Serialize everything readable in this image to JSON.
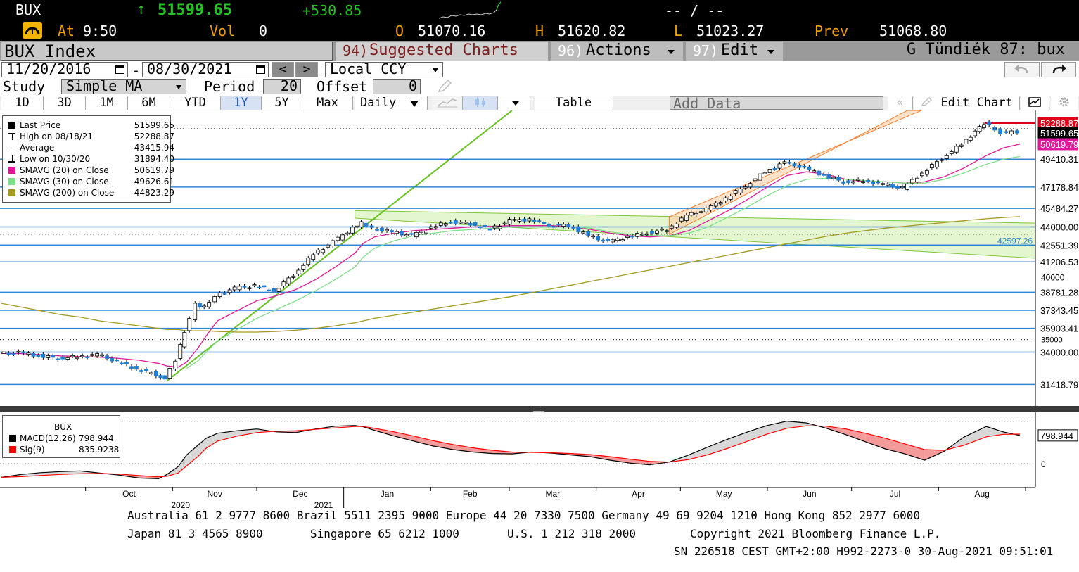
{
  "ticker": {
    "symbol": "BUX",
    "arrow": "↑",
    "last": "51599.65",
    "change": "+530.85",
    "bidask": "-- / --",
    "at_label": "At",
    "time": "9:50",
    "vol_label": "Vol",
    "vol": "0",
    "open_label": "O",
    "open": "51070.16",
    "high_label": "H",
    "high": "51620.82",
    "low_label": "L",
    "low": "51023.27",
    "prev_label": "Prev",
    "prev": "51068.80"
  },
  "menubar": {
    "security": "BUX Index",
    "suggested_num": "94)",
    "suggested": "Suggested Charts",
    "actions_num": "96)",
    "actions": "Actions",
    "edit_num": "97)",
    "edit": "Edit",
    "chart_name": "G Tündiék 87: bux"
  },
  "daterow": {
    "start": "11/20/2016",
    "end": "08/30/2021",
    "prev_btn": "<",
    "next_btn": ">",
    "currency": "Local CCY"
  },
  "studyrow": {
    "study_label": "Study",
    "study": "Simple MA",
    "period_label": "Period",
    "period": "20",
    "offset_label": "Offset",
    "offset": "0"
  },
  "toolbar": {
    "tabs": [
      "1D",
      "3D",
      "1M",
      "6M",
      "YTD",
      "1Y",
      "5Y",
      "Max"
    ],
    "active_tab": "1Y",
    "frequency": "Daily",
    "table": "Table",
    "add_data": "Add Data",
    "edit_chart": "Edit Chart"
  },
  "legend": [
    {
      "label": "Last Price",
      "value": "51599.65",
      "color": "#000000",
      "marker": "square"
    },
    {
      "label": "High on 08/18/21",
      "value": "52288.87",
      "color": "#000000",
      "marker": "high"
    },
    {
      "label": "Average",
      "value": "43415.94",
      "color": "#000000",
      "marker": "avg"
    },
    {
      "label": "Low on 10/30/20",
      "value": "31894.40",
      "color": "#000000",
      "marker": "low"
    },
    {
      "label": "SMAVG (20)  on Close",
      "value": "50619.79",
      "color": "#e0189a",
      "marker": "square"
    },
    {
      "label": "SMAVG (30)  on Close",
      "value": "49626.61",
      "color": "#7fe08a",
      "marker": "square"
    },
    {
      "label": "SMAVG (200)  on Close",
      "value": "44823.29",
      "color": "#a39a22",
      "marker": "square"
    }
  ],
  "price_labels": [
    {
      "value": "52288.87",
      "bg": "#e0001a",
      "fg": "#ffffff"
    },
    {
      "value": "51599.65",
      "bg": "#000000",
      "fg": "#ffffff"
    },
    {
      "value": "50619.79",
      "bg": "#e0189a",
      "fg": "#ffffff"
    },
    {
      "value": "49410.31",
      "bg": "#ffffff",
      "fg": "#000000"
    },
    {
      "value": "47178.84",
      "bg": "#ffffff",
      "fg": "#000000"
    },
    {
      "value": "45484.27",
      "bg": "#ffffff",
      "fg": "#000000"
    },
    {
      "value": "44000.00",
      "bg": "#ffffff",
      "fg": "#000000"
    },
    {
      "value": "42551.39",
      "bg": "#ffffff",
      "fg": "#000000"
    },
    {
      "value": "41206.53",
      "bg": "#ffffff",
      "fg": "#000000"
    },
    {
      "value": "38781.28",
      "bg": "#ffffff",
      "fg": "#000000"
    },
    {
      "value": "37343.45",
      "bg": "#ffffff",
      "fg": "#000000"
    },
    {
      "value": "35903.41",
      "bg": "#ffffff",
      "fg": "#000000"
    },
    {
      "value": "34000.00",
      "bg": "#ffffff",
      "fg": "#000000"
    },
    {
      "value": "31418.79",
      "bg": "#ffffff",
      "fg": "#000000"
    }
  ],
  "axis_ticks": [
    "40000",
    "35000"
  ],
  "channel_label": "42597.26",
  "macd_legend": {
    "title": "BUX",
    "macd_label": "MACD(12,26)",
    "macd_value": "798.944",
    "sig_label": "Sig(9)",
    "sig_value": "835.9238",
    "right_label": "798.944",
    "zero_label": "0"
  },
  "x_axis": {
    "months": [
      "Oct",
      "Nov",
      "Dec",
      "Jan",
      "Feb",
      "Mar",
      "Apr",
      "May",
      "Jun",
      "Jul",
      "Aug"
    ],
    "years": [
      "2020",
      "2021"
    ]
  },
  "footer": {
    "line1": "Australia 61 2 9777 8600 Brazil 5511 2395 9000 Europe 44 20 7330 7500 Germany 49 69 9204 1210 Hong Kong 852 2977 6000",
    "line2a": "Japan 81 3 4565 8900",
    "line2b": "Singapore 65 6212 1000",
    "line2c": "U.S. 1 212 318 2000",
    "line2d": "Copyright 2021 Bloomberg Finance L.P.",
    "line3": "SN 226518 CEST GMT+2:00 H992-2273-0 30-Aug-2021 09:51:01"
  },
  "chart_data": {
    "type": "line",
    "ylim": [
      29700,
      53300
    ],
    "x": [
      "2020-09-01",
      "2020-09-08",
      "2020-09-15",
      "2020-09-22",
      "2020-09-29",
      "2020-10-06",
      "2020-10-13",
      "2020-10-20",
      "2020-10-27",
      "2020-10-30",
      "2020-11-03",
      "2020-11-06",
      "2020-11-10",
      "2020-11-13",
      "2020-11-17",
      "2020-11-24",
      "2020-12-01",
      "2020-12-08",
      "2020-12-15",
      "2020-12-22",
      "2020-12-29",
      "2021-01-05",
      "2021-01-08",
      "2021-01-12",
      "2021-01-19",
      "2021-01-26",
      "2021-02-02",
      "2021-02-09",
      "2021-02-16",
      "2021-02-23",
      "2021-03-02",
      "2021-03-09",
      "2021-03-16",
      "2021-03-23",
      "2021-03-30",
      "2021-04-06",
      "2021-04-13",
      "2021-04-20",
      "2021-04-27",
      "2021-05-04",
      "2021-05-11",
      "2021-05-18",
      "2021-05-25",
      "2021-06-01",
      "2021-06-08",
      "2021-06-15",
      "2021-06-22",
      "2021-06-29",
      "2021-07-06",
      "2021-07-13",
      "2021-07-20",
      "2021-07-27",
      "2021-08-03",
      "2021-08-10",
      "2021-08-18",
      "2021-08-24",
      "2021-08-30"
    ],
    "series": [
      {
        "name": "Last Price",
        "color": "#1f7fd8",
        "values": [
          33880,
          33950,
          33720,
          33520,
          33630,
          33810,
          33240,
          32650,
          32200,
          31894,
          33400,
          35600,
          37800,
          37600,
          38500,
          39100,
          39300,
          38880,
          40200,
          41800,
          42800,
          43900,
          44300,
          43900,
          43600,
          43300,
          43950,
          44450,
          44250,
          43800,
          44500,
          44600,
          44150,
          44100,
          43300,
          42800,
          43200,
          43550,
          43800,
          44900,
          45400,
          46300,
          47300,
          48400,
          49150,
          48700,
          48100,
          47600,
          47700,
          47400,
          47100,
          48300,
          49500,
          50600,
          52289,
          51500,
          51600
        ]
      },
      {
        "name": "SMAVG (20)  on Close",
        "color": "#e0189a",
        "values": [
          33900,
          33880,
          33800,
          33700,
          33650,
          33600,
          33500,
          33350,
          33100,
          32900,
          32800,
          33200,
          34300,
          35300,
          36500,
          37300,
          38100,
          38500,
          39000,
          39800,
          40800,
          41900,
          42700,
          43200,
          43500,
          43700,
          43800,
          43900,
          44000,
          44050,
          44100,
          44100,
          44100,
          44000,
          43800,
          43500,
          43300,
          43200,
          43300,
          43700,
          44500,
          45300,
          46200,
          47200,
          48100,
          48400,
          48200,
          47800,
          47600,
          47600,
          47500,
          47600,
          48000,
          48700,
          49700,
          50300,
          50620
        ]
      },
      {
        "name": "SMAVG (30)  on Close",
        "color": "#7fe08a",
        "values": [
          null,
          null,
          null,
          null,
          null,
          null,
          null,
          null,
          null,
          null,
          null,
          32700,
          33300,
          34000,
          34900,
          35800,
          36700,
          37400,
          38100,
          38900,
          39800,
          40800,
          41600,
          42300,
          42900,
          43300,
          43500,
          43700,
          43800,
          43900,
          44000,
          44000,
          44000,
          44000,
          43900,
          43600,
          43400,
          43300,
          43300,
          43500,
          44000,
          44800,
          45600,
          46500,
          47300,
          47800,
          47900,
          47800,
          47700,
          47600,
          47500,
          47500,
          47800,
          48300,
          49000,
          49400,
          49627
        ]
      },
      {
        "name": "SMAVG (200)  on Close",
        "color": "#a39a22",
        "values": [
          37900,
          37600,
          37300,
          37000,
          36800,
          36500,
          36300,
          36100,
          35900,
          35800,
          35800,
          35700,
          35700,
          35700,
          35650,
          35600,
          35600,
          35650,
          35750,
          35900,
          36100,
          36350,
          36500,
          36700,
          36950,
          37200,
          37450,
          37700,
          37950,
          38200,
          38450,
          38750,
          39050,
          39350,
          39650,
          39950,
          40250,
          40550,
          40850,
          41150,
          41450,
          41750,
          42050,
          42350,
          42650,
          42950,
          43250,
          43500,
          43700,
          43900,
          44050,
          44200,
          44350,
          44500,
          44650,
          44750,
          44823
        ]
      }
    ],
    "macd": {
      "series": [
        {
          "name": "MACD(12,26)",
          "color": "#000000",
          "values": [
            -380,
            -300,
            -250,
            -220,
            -200,
            -260,
            -320,
            -400,
            -420,
            -300,
            -80,
            250,
            520,
            720,
            860,
            930,
            980,
            900,
            880,
            980,
            1060,
            1080,
            1040,
            940,
            780,
            640,
            500,
            400,
            330,
            290,
            280,
            330,
            300,
            250,
            200,
            100,
            20,
            -30,
            50,
            250,
            480,
            700,
            900,
            1080,
            1200,
            1150,
            1000,
            820,
            620,
            420,
            280,
            100,
            350,
            750,
            1050,
            900,
            799
          ]
        },
        {
          "name": "Sig(9)",
          "color": "#ff0000",
          "values": [
            -380,
            -360,
            -330,
            -300,
            -280,
            -270,
            -290,
            -330,
            -370,
            -350,
            -260,
            -60,
            200,
            440,
            640,
            780,
            880,
            920,
            930,
            970,
            1010,
            1050,
            1050,
            1000,
            900,
            780,
            650,
            540,
            450,
            380,
            330,
            320,
            310,
            290,
            260,
            200,
            130,
            70,
            50,
            120,
            260,
            440,
            640,
            840,
            1000,
            1070,
            1060,
            980,
            860,
            720,
            560,
            400,
            380,
            520,
            760,
            830,
            836
          ]
        }
      ]
    },
    "regression_levels": [
      52288.87,
      49410.31,
      47178.84,
      45484.27,
      44000.0,
      42551.39,
      41206.53,
      38781.28,
      37343.45,
      35903.41,
      34000.0,
      31418.79
    ]
  }
}
